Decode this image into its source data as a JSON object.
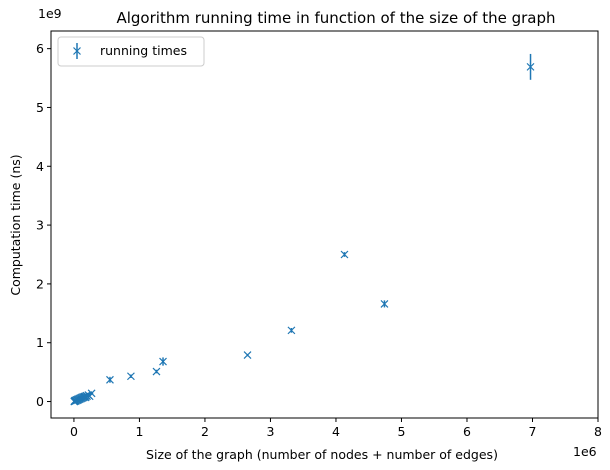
{
  "chart_data": {
    "type": "scatter",
    "title": "Algorithm running time in function of the size of the graph",
    "xlabel": "Size of the graph (number of nodes + number of edges)",
    "ylabel": "Computation time (ns)",
    "x_offset_label": "1e6",
    "y_offset_label": "1e9",
    "xlim": [
      -0.35,
      8.0
    ],
    "ylim": [
      -0.28,
      6.3
    ],
    "xticks": [
      0,
      1,
      2,
      3,
      4,
      5,
      6,
      7,
      8
    ],
    "yticks": [
      0,
      1,
      2,
      3,
      4,
      5,
      6
    ],
    "grid": false,
    "legend_position": "upper-left",
    "color": "#1f77b4",
    "series": [
      {
        "name": "running times",
        "marker": "x",
        "x_unit_scale": "1e6",
        "y_unit_scale": "1e9",
        "points": [
          {
            "x": 0.005,
            "y": 0.0,
            "err": 0.01
          },
          {
            "x": 0.01,
            "y": 0.01,
            "err": 0.01
          },
          {
            "x": 0.015,
            "y": 0.005,
            "err": 0.01
          },
          {
            "x": 0.02,
            "y": 0.02,
            "err": 0.01
          },
          {
            "x": 0.03,
            "y": 0.01,
            "err": 0.01
          },
          {
            "x": 0.04,
            "y": 0.03,
            "err": 0.01
          },
          {
            "x": 0.05,
            "y": 0.02,
            "err": 0.01
          },
          {
            "x": 0.06,
            "y": 0.04,
            "err": 0.01
          },
          {
            "x": 0.07,
            "y": 0.03,
            "err": 0.01
          },
          {
            "x": 0.08,
            "y": 0.05,
            "err": 0.01
          },
          {
            "x": 0.09,
            "y": 0.04,
            "err": 0.01
          },
          {
            "x": 0.1,
            "y": 0.06,
            "err": 0.01
          },
          {
            "x": 0.11,
            "y": 0.05,
            "err": 0.01
          },
          {
            "x": 0.12,
            "y": 0.07,
            "err": 0.01
          },
          {
            "x": 0.13,
            "y": 0.06,
            "err": 0.01
          },
          {
            "x": 0.14,
            "y": 0.08,
            "err": 0.01
          },
          {
            "x": 0.15,
            "y": 0.07,
            "err": 0.01
          },
          {
            "x": 0.16,
            "y": 0.08,
            "err": 0.01
          },
          {
            "x": 0.17,
            "y": 0.09,
            "err": 0.01
          },
          {
            "x": 0.18,
            "y": 0.07,
            "err": 0.01
          },
          {
            "x": 0.19,
            "y": 0.1,
            "err": 0.01
          },
          {
            "x": 0.2,
            "y": 0.09,
            "err": 0.01
          },
          {
            "x": 0.22,
            "y": 0.11,
            "err": 0.01
          },
          {
            "x": 0.24,
            "y": 0.09,
            "err": 0.01
          },
          {
            "x": 0.27,
            "y": 0.14,
            "err": 0.02
          },
          {
            "x": 0.55,
            "y": 0.37,
            "err": 0.05
          },
          {
            "x": 0.87,
            "y": 0.43,
            "err": 0.03
          },
          {
            "x": 1.26,
            "y": 0.51,
            "err": 0.03
          },
          {
            "x": 1.36,
            "y": 0.68,
            "err": 0.07
          },
          {
            "x": 2.65,
            "y": 0.79,
            "err": 0.02
          },
          {
            "x": 3.32,
            "y": 1.21,
            "err": 0.04
          },
          {
            "x": 4.13,
            "y": 2.5,
            "err": 0.04
          },
          {
            "x": 4.74,
            "y": 1.66,
            "err": 0.06
          },
          {
            "x": 6.97,
            "y": 5.69,
            "err": 0.22
          }
        ]
      }
    ]
  }
}
